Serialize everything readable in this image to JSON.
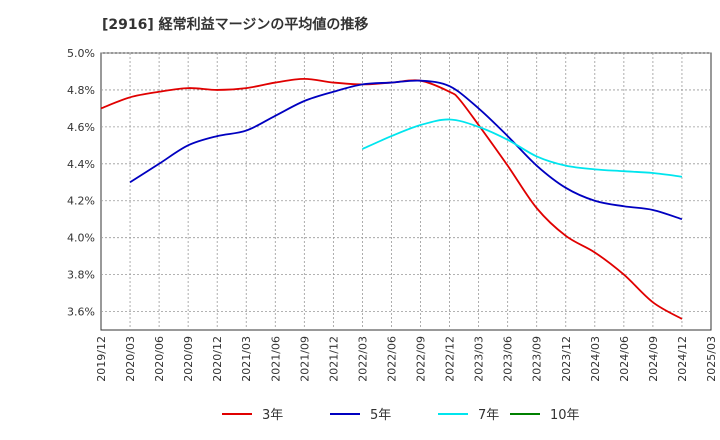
{
  "chart_data": {
    "type": "line",
    "title": "[2916]  経常利益マージンの平均値の推移",
    "xlabel": "",
    "ylabel": "",
    "ylim": [
      3.5,
      5.0
    ],
    "y_ticks": [
      3.6,
      3.8,
      4.0,
      4.2,
      4.4,
      4.6,
      4.8,
      5.0
    ],
    "y_tick_labels": [
      "3.6%",
      "3.8%",
      "4.0%",
      "4.2%",
      "4.4%",
      "4.6%",
      "4.8%",
      "5.0%"
    ],
    "x_start": "2019/12",
    "x_ticks": [
      "2019/12",
      "2020/03",
      "2020/06",
      "2020/09",
      "2020/12",
      "2021/03",
      "2021/06",
      "2021/09",
      "2021/12",
      "2022/03",
      "2022/06",
      "2022/09",
      "2022/12",
      "2023/03",
      "2023/06",
      "2023/09",
      "2023/12",
      "2024/03",
      "2024/06",
      "2024/09",
      "2024/12",
      "2025/03"
    ],
    "grid": "y-dashed",
    "legend_position": "bottom",
    "series": [
      {
        "name": "3年",
        "color": "#e00000",
        "points": [
          [
            "2019/12",
            4.7
          ],
          [
            "2020/03",
            4.76
          ],
          [
            "2020/06",
            4.79
          ],
          [
            "2020/09",
            4.81
          ],
          [
            "2020/12",
            4.8
          ],
          [
            "2021/03",
            4.81
          ],
          [
            "2021/06",
            4.84
          ],
          [
            "2021/09",
            4.86
          ],
          [
            "2021/12",
            4.84
          ],
          [
            "2022/03",
            4.83
          ],
          [
            "2022/06",
            4.84
          ],
          [
            "2022/09",
            4.85
          ],
          [
            "2022/12",
            4.79
          ],
          [
            "2023/01",
            4.75
          ],
          [
            "2023/03",
            4.61
          ],
          [
            "2023/06",
            4.39
          ],
          [
            "2023/09",
            4.16
          ],
          [
            "2023/12",
            4.01
          ],
          [
            "2024/03",
            3.92
          ],
          [
            "2024/06",
            3.8
          ],
          [
            "2024/09",
            3.65
          ],
          [
            "2024/12",
            3.56
          ]
        ]
      },
      {
        "name": "5年",
        "color": "#0000c0",
        "points": [
          [
            "2020/03",
            4.3
          ],
          [
            "2020/06",
            4.4
          ],
          [
            "2020/09",
            4.5
          ],
          [
            "2020/12",
            4.55
          ],
          [
            "2021/03",
            4.58
          ],
          [
            "2021/06",
            4.66
          ],
          [
            "2021/09",
            4.74
          ],
          [
            "2021/12",
            4.79
          ],
          [
            "2022/03",
            4.83
          ],
          [
            "2022/06",
            4.84
          ],
          [
            "2022/09",
            4.85
          ],
          [
            "2022/12",
            4.82
          ],
          [
            "2023/03",
            4.7
          ],
          [
            "2023/06",
            4.55
          ],
          [
            "2023/09",
            4.39
          ],
          [
            "2023/12",
            4.27
          ],
          [
            "2024/03",
            4.2
          ],
          [
            "2024/06",
            4.17
          ],
          [
            "2024/09",
            4.15
          ],
          [
            "2024/12",
            4.1
          ]
        ]
      },
      {
        "name": "7年",
        "color": "#00e5ee",
        "points": [
          [
            "2022/03",
            4.48
          ],
          [
            "2022/06",
            4.55
          ],
          [
            "2022/09",
            4.61
          ],
          [
            "2022/12",
            4.64
          ],
          [
            "2023/03",
            4.6
          ],
          [
            "2023/06",
            4.53
          ],
          [
            "2023/09",
            4.44
          ],
          [
            "2023/12",
            4.39
          ],
          [
            "2024/03",
            4.37
          ],
          [
            "2024/06",
            4.36
          ],
          [
            "2024/09",
            4.35
          ],
          [
            "2024/12",
            4.33
          ]
        ]
      },
      {
        "name": "10年",
        "color": "#008000",
        "points": []
      }
    ]
  }
}
